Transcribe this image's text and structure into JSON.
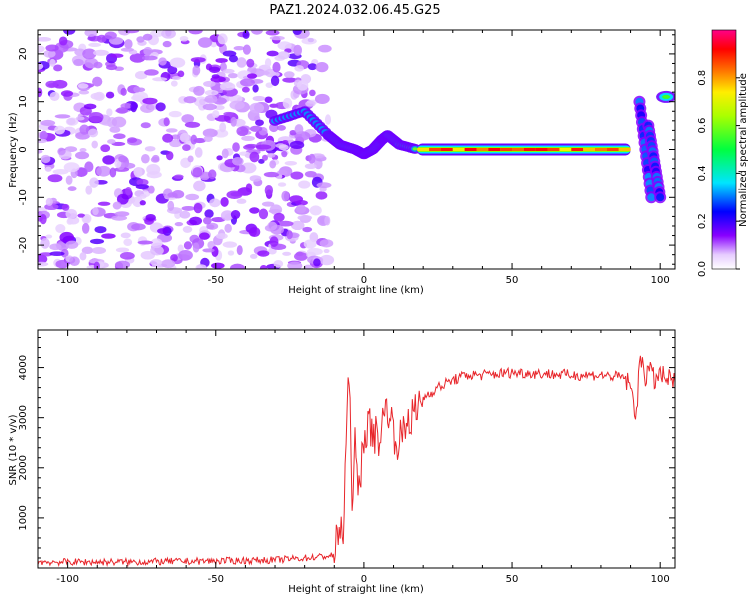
{
  "title": "PAZ1.2024.032.06.45.G25",
  "chart_data": [
    {
      "type": "heatmap",
      "xlabel": "Height of straight line (km)",
      "ylabel": "Frequency (Hz)",
      "xlim": [
        -110,
        105
      ],
      "ylim": [
        -25,
        25
      ],
      "x_ticks": [
        -100,
        -50,
        0,
        50,
        100
      ],
      "y_ticks": [
        -20,
        -10,
        0,
        10,
        20
      ],
      "colorbar": {
        "label": "Normalized spectral amplitude",
        "range": [
          0,
          1
        ],
        "ticks": [
          0.0,
          0.2,
          0.4,
          0.6,
          0.8
        ],
        "colormap": "purple-blue-cyan-green-yellow-red-magenta"
      },
      "features": [
        {
          "segment": "noise",
          "x_range": [
            -110,
            -12
          ],
          "freq_range": [
            -25,
            25
          ],
          "amplitude": 0.1
        },
        {
          "segment": "transition",
          "x": [
            -30,
            -20,
            -12,
            -8,
            -3,
            0,
            3,
            6,
            8,
            12,
            18
          ],
          "freq": [
            6,
            8,
            3,
            1,
            0,
            -1,
            0,
            2,
            3,
            1,
            0
          ]
        },
        {
          "segment": "signal",
          "x_range": [
            18,
            90
          ],
          "freq": 0,
          "amplitude_peak": 0.95
        },
        {
          "segment": "stripe",
          "x": [
            93,
            97
          ],
          "freq": [
            10,
            -10
          ]
        },
        {
          "segment": "stripe",
          "x": [
            96,
            100
          ],
          "freq": [
            5,
            -10
          ]
        },
        {
          "segment": "blob",
          "x": [
            102
          ],
          "freq": [
            11
          ]
        }
      ]
    },
    {
      "type": "line",
      "xlabel": "Height of straight line (km)",
      "ylabel": "SNR (10 * v/v)",
      "xlim": [
        -110,
        105
      ],
      "ylim": [
        0,
        4750
      ],
      "x_ticks": [
        -100,
        -50,
        0,
        50,
        100
      ],
      "y_ticks": [
        1000,
        2000,
        3000,
        4000
      ],
      "color": "#e8262b",
      "series": [
        {
          "x": [
            -110,
            -80,
            -50,
            -30,
            -20,
            -10,
            -8,
            -7,
            -6,
            -5,
            -4,
            -3,
            -2,
            -1,
            0,
            2,
            5,
            8,
            10,
            12,
            15,
            18,
            20,
            25,
            30,
            35,
            40,
            50,
            60,
            70,
            80,
            88,
            90,
            91,
            92,
            93,
            94,
            95,
            96,
            98,
            100,
            103,
            105
          ],
          "y": [
            120,
            120,
            140,
            160,
            200,
            250,
            900,
            600,
            2500,
            3850,
            1500,
            2400,
            1400,
            2000,
            2700,
            2800,
            2600,
            3300,
            2700,
            2500,
            3000,
            3100,
            3400,
            3600,
            3750,
            3850,
            3850,
            3900,
            3880,
            3850,
            3850,
            3800,
            3600,
            3300,
            3100,
            4000,
            4200,
            3800,
            4000,
            3750,
            3850,
            3750,
            3700
          ]
        }
      ]
    }
  ]
}
